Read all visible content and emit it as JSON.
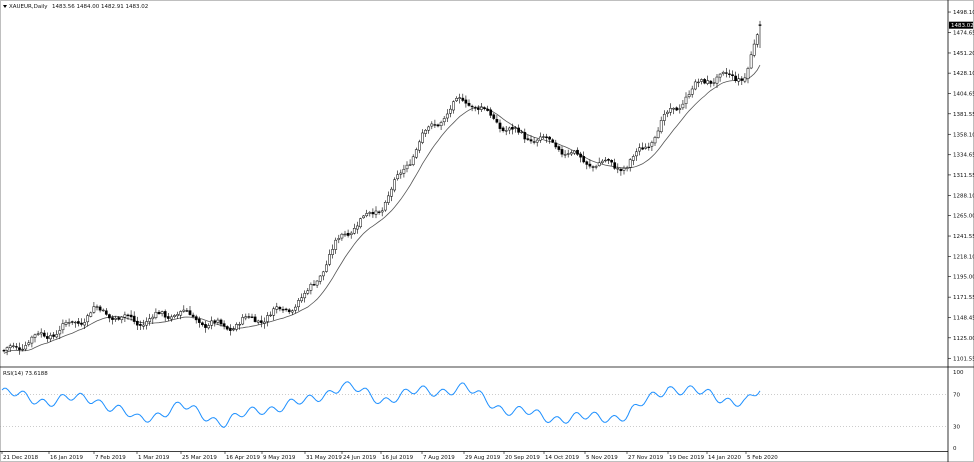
{
  "header": {
    "symbol_label": "XAUEUR,Daily",
    "ohlc_text": "1483.56 1484.00 1482.91 1483.02"
  },
  "price_pane": {
    "current_price_label": "1483.02",
    "y_ticks": [
      "1498.10",
      "1474.65",
      "1451.20",
      "1428.10",
      "1404.65",
      "1381.55",
      "1358.10",
      "1334.65",
      "1311.55",
      "1288.10",
      "1265.00",
      "1241.55",
      "1218.10",
      "1195.00",
      "1171.55",
      "1148.45",
      "1125.00",
      "1101.55"
    ],
    "colors": {
      "up_candle": "#ffffff",
      "down_candle": "#000000",
      "wick": "#000000",
      "moving_average": "#555555",
      "price_marker_bg": "#000000"
    }
  },
  "rsi_pane": {
    "label": "RSI(14) 73.6188",
    "y_ticks": [
      "100",
      "70",
      "30",
      "0"
    ],
    "levels": [
      70,
      30
    ],
    "line_color": "#1e90ff"
  },
  "x_axis": {
    "labels": [
      "21 Dec 2018",
      "16 Jan 2019",
      "7 Feb 2019",
      "1 Mar 2019",
      "25 Mar 2019",
      "16 Apr 2019",
      "9 May 2019",
      "31 May 2019",
      "24 Jun 2019",
      "16 Jul 2019",
      "7 Aug 2019",
      "29 Aug 2019",
      "20 Sep 2019",
      "14 Oct 2019",
      "5 Nov 2019",
      "27 Nov 2019",
      "19 Dec 2019",
      "14 Jan 2020",
      "5 Feb 2020"
    ]
  },
  "chart_data": {
    "type": "candlestick",
    "title": "XAUEUR,Daily",
    "ylim": [
      1095,
      1505
    ],
    "x_labels": [
      "21 Dec 2018",
      "16 Jan 2019",
      "7 Feb 2019",
      "1 Mar 2019",
      "25 Mar 2019",
      "16 Apr 2019",
      "9 May 2019",
      "31 May 2019",
      "24 Jun 2019",
      "16 Jul 2019",
      "7 Aug 2019",
      "29 Aug 2019",
      "20 Sep 2019",
      "14 Oct 2019",
      "5 Nov 2019",
      "27 Nov 2019",
      "19 Dec 2019",
      "14 Jan 2020",
      "5 Feb 2020"
    ],
    "close_anchors": [
      [
        "21 Dec 2018",
        1105
      ],
      [
        "16 Jan 2019",
        1128
      ],
      [
        "7 Feb 2019",
        1160
      ],
      [
        "1 Mar 2019",
        1138
      ],
      [
        "25 Mar 2019",
        1158
      ],
      [
        "16 Apr 2019",
        1135
      ],
      [
        "9 May 2019",
        1145
      ],
      [
        "31 May 2019",
        1175
      ],
      [
        "24 Jun 2019",
        1240
      ],
      [
        "16 Jul 2019",
        1272
      ],
      [
        "7 Aug 2019",
        1360
      ],
      [
        "29 Aug 2019",
        1395
      ],
      [
        "20 Sep 2019",
        1368
      ],
      [
        "14 Oct 2019",
        1352
      ],
      [
        "5 Nov 2019",
        1322
      ],
      [
        "27 Nov 2019",
        1325
      ],
      [
        "19 Dec 2019",
        1378
      ],
      [
        "14 Jan 2020",
        1420
      ],
      [
        "5 Feb 2020",
        1430
      ],
      [
        "19 Feb 2020",
        1483.02
      ]
    ],
    "last_bar": {
      "open": 1483.56,
      "high": 1484.0,
      "low": 1482.91,
      "close": 1483.02
    },
    "moving_average": "simple",
    "rsi": {
      "period": 14,
      "last_value": 73.6188,
      "ylim": [
        0,
        100
      ],
      "levels": [
        70,
        30
      ],
      "anchors": [
        [
          "21 Dec 2018",
          72
        ],
        [
          "16 Jan 2019",
          62
        ],
        [
          "7 Feb 2019",
          66
        ],
        [
          "1 Mar 2019",
          38
        ],
        [
          "25 Mar 2019",
          55
        ],
        [
          "16 Apr 2019",
          35
        ],
        [
          "9 May 2019",
          52
        ],
        [
          "31 May 2019",
          60
        ],
        [
          "24 Jun 2019",
          82
        ],
        [
          "16 Jul 2019",
          64
        ],
        [
          "7 Aug 2019",
          74
        ],
        [
          "29 Aug 2019",
          78
        ],
        [
          "20 Sep 2019",
          52
        ],
        [
          "14 Oct 2019",
          42
        ],
        [
          "5 Nov 2019",
          40
        ],
        [
          "27 Nov 2019",
          44
        ],
        [
          "19 Dec 2019",
          80
        ],
        [
          "14 Jan 2020",
          70
        ],
        [
          "5 Feb 2020",
          60
        ],
        [
          "19 Feb 2020",
          73.6188
        ]
      ]
    }
  }
}
